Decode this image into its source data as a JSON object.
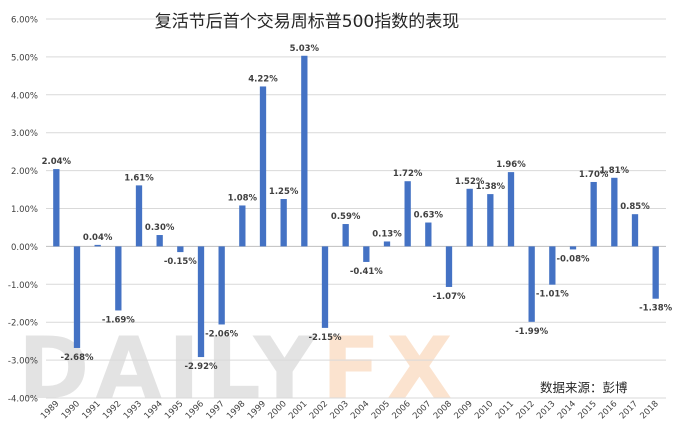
{
  "chart_data": {
    "type": "bar",
    "title": "复活节后首个交易周标普500指数的表现",
    "source_note": "数据来源：彭博",
    "watermark": "DAILYFX",
    "categories": [
      "1989",
      "1990",
      "1991",
      "1992",
      "1993",
      "1994",
      "1995",
      "1996",
      "1997",
      "1998",
      "1999",
      "2000",
      "2001",
      "2002",
      "2003",
      "2004",
      "2005",
      "2006",
      "2007",
      "2008",
      "2009",
      "2010",
      "2011",
      "2012",
      "2013",
      "2014",
      "2015",
      "2016",
      "2017",
      "2018"
    ],
    "values": [
      2.04,
      -2.68,
      0.04,
      -1.69,
      1.61,
      0.3,
      -0.15,
      -2.92,
      -2.06,
      1.08,
      4.22,
      1.25,
      5.03,
      -2.15,
      0.59,
      -0.41,
      0.13,
      1.72,
      0.63,
      -1.07,
      1.52,
      1.38,
      1.96,
      -1.99,
      -1.01,
      -0.08,
      1.7,
      1.81,
      0.85,
      -1.38
    ],
    "data_labels": [
      "2.04%",
      "-2.68%",
      "0.04%",
      "-1.69%",
      "1.61%",
      "0.30%",
      "-0.15%",
      "-2.92%",
      "-2.06%",
      "1.08%",
      "4.22%",
      "1.25%",
      "5.03%",
      "-2.15%",
      "0.59%",
      "-0.41%",
      "0.13%",
      "1.72%",
      "0.63%",
      "-1.07%",
      "1.52%",
      "1.38%",
      "1.96%",
      "-1.99%",
      "-1.01%",
      "-0.08%",
      "1.70%",
      "1.81%",
      "0.85%",
      "-1.38%"
    ],
    "y_ticks": [
      -4,
      -3,
      -2,
      -1,
      0,
      1,
      2,
      3,
      4,
      5,
      6
    ],
    "y_tick_labels": [
      "-4.00%",
      "-3.00%",
      "-2.00%",
      "-1.00%",
      "0.00%",
      "1.00%",
      "2.00%",
      "3.00%",
      "4.00%",
      "5.00%",
      "6.00%"
    ],
    "ylim": [
      -4,
      6
    ],
    "grid": true,
    "legend": "none",
    "colors": {
      "bar": "#4472C4",
      "grid": "#d9d9d9",
      "axis": "#bfbfbf",
      "text": "#404040",
      "title": "#262626",
      "watermark_main": "#e3e3e3",
      "watermark_accent": "#fbe3cf"
    }
  }
}
